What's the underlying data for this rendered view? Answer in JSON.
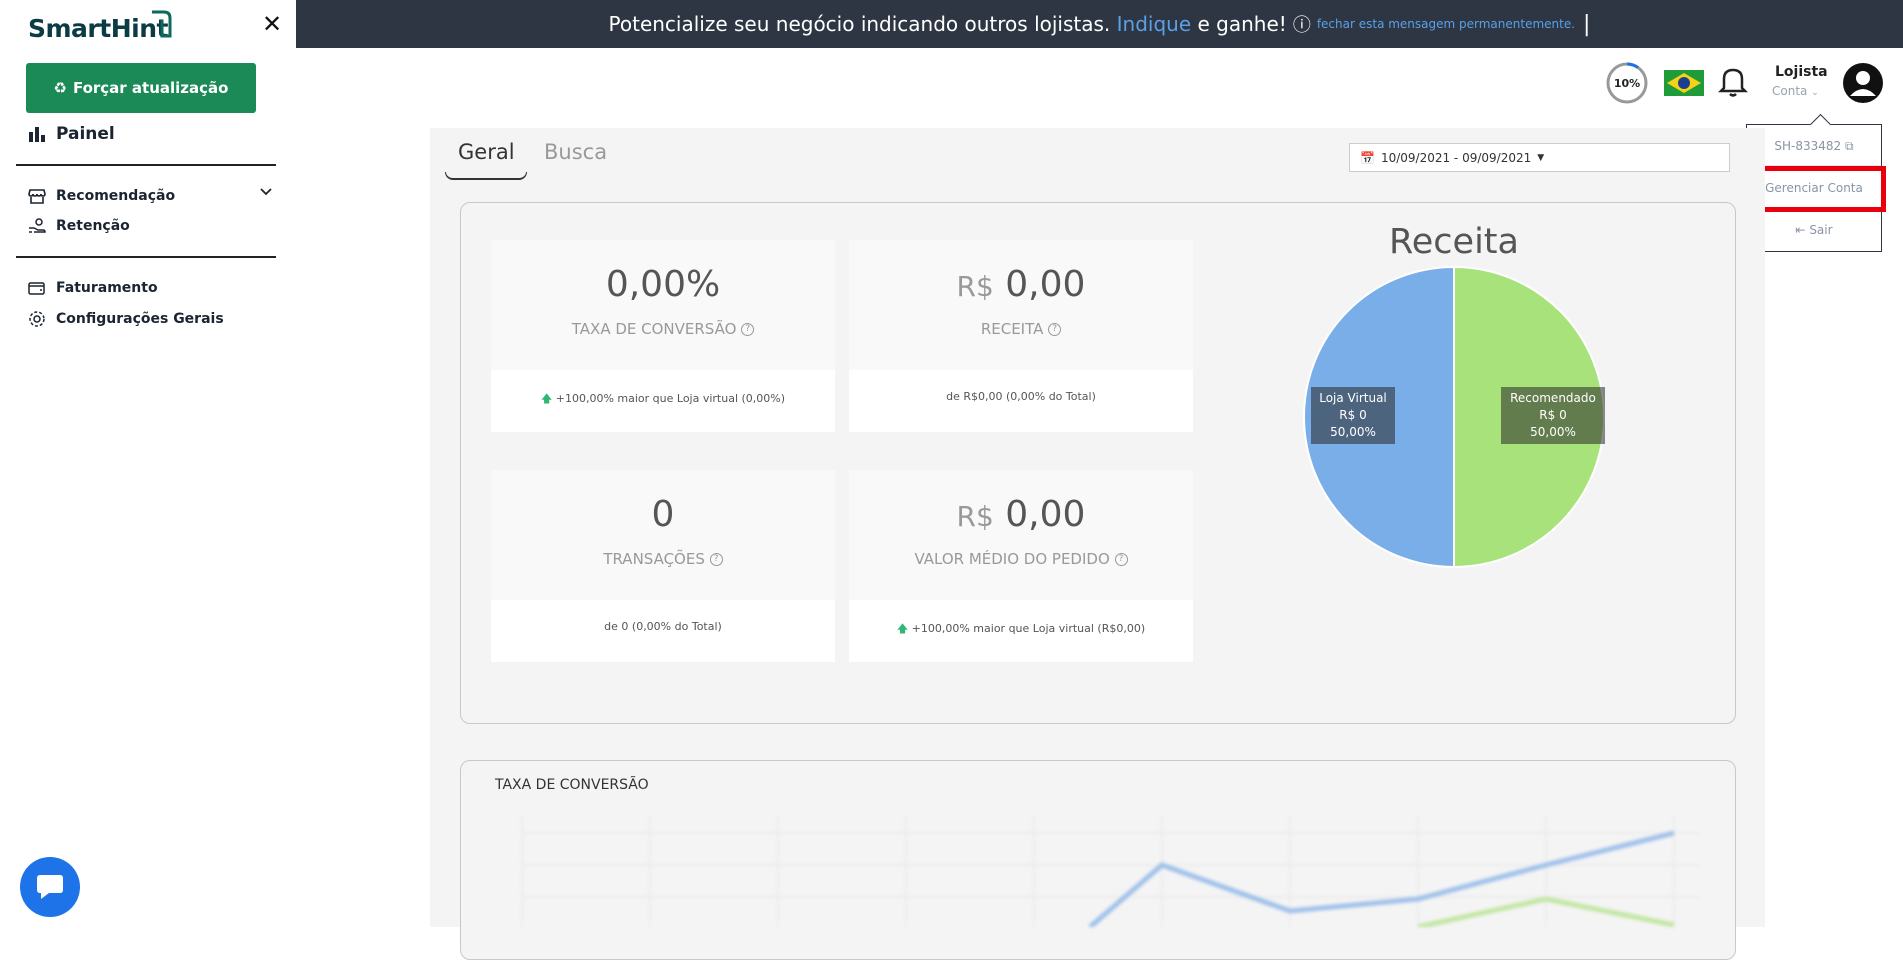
{
  "sidebar": {
    "logo": "SmartHint",
    "force_button": "Forçar atualização",
    "nav": {
      "painel": "Painel",
      "recomendacao": "Recomendação",
      "retencao": "Retenção",
      "faturamento": "Faturamento",
      "configuracoes": "Configurações Gerais"
    }
  },
  "banner": {
    "text_start": "Potencialize seu negócio indicando outros lojistas.",
    "link": "Indique",
    "text_end": "e ganhe!",
    "dismiss": "fechar esta mensagem permanentemente."
  },
  "header": {
    "progress": "10%",
    "user_name": "Lojista",
    "user_sub": "Conta"
  },
  "dropdown": {
    "account_id": "SH-833482",
    "manage": "Gerenciar Conta",
    "logout": "Sair"
  },
  "tabs": [
    "Geral",
    "Busca"
  ],
  "date_range": "10/09/2021 - 09/09/2021",
  "cards": [
    {
      "value": "0,00%",
      "label": "TAXA DE CONVERSÃO",
      "foot": "+100,00% maior que Loja virtual (0,00%)"
    },
    {
      "currency": "R$",
      "value": "0,00",
      "label": "RECEITA",
      "foot": "de R$0,00 (0,00% do Total)"
    },
    {
      "value": "0",
      "label": "TRANSAÇÕES",
      "foot": "de 0 (0,00% do Total)"
    },
    {
      "currency": "R$",
      "value": "0,00",
      "label": "VALOR MÉDIO DO PEDIDO",
      "foot": "+100,00% maior que Loja virtual (R$0,00)"
    }
  ],
  "chart_data": {
    "type": "pie",
    "title": "Receita",
    "slices": [
      {
        "name": "Loja Virtual",
        "value_label": "R$ 0",
        "percent": 50.0,
        "percent_label": "50,00%",
        "color": "#7aaee8"
      },
      {
        "name": "Recomendado",
        "value_label": "R$ 0",
        "percent": 50.0,
        "percent_label": "50,00%",
        "color": "#a8e27a"
      }
    ]
  },
  "panel2": {
    "title": "TAXA DE CONVERSÃO"
  },
  "colors": {
    "accent_green": "#1c8a57",
    "banner": "#2d3642",
    "highlight": "#e8000d"
  }
}
